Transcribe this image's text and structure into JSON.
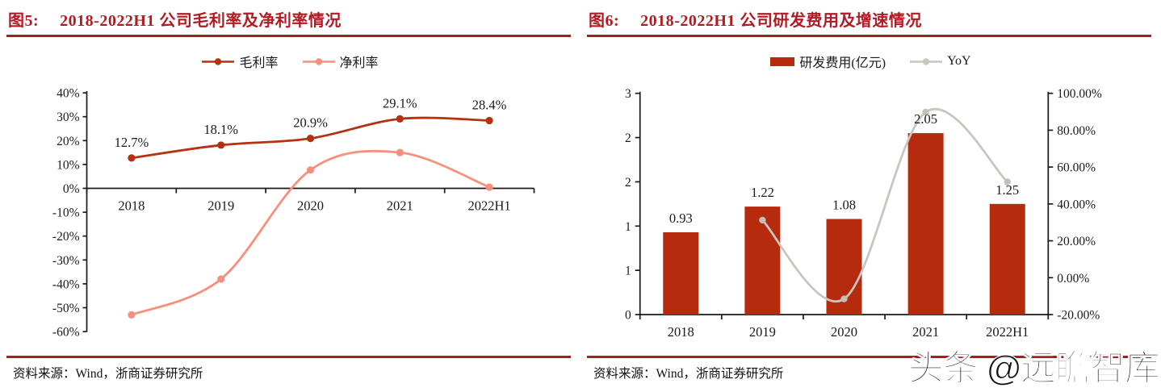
{
  "figures": [
    {
      "title_prefix": "图5:",
      "title": "2018-2022H1 公司毛利率及净利率情况",
      "source": "资料来源：Wind，浙商证券研究所",
      "chart_data": {
        "type": "line",
        "categories": [
          "2018",
          "2019",
          "2020",
          "2021",
          "2022H1"
        ],
        "series": [
          {
            "name": "毛利率",
            "color": "#B5310F",
            "values": [
              12.7,
              18.1,
              20.9,
              29.1,
              28.4
            ],
            "data_labels": [
              "12.7%",
              "18.1%",
              "20.9%",
              "29.1%",
              "28.4%"
            ]
          },
          {
            "name": "净利率",
            "color": "#F7907A",
            "values": [
              -53,
              -38,
              7.7,
              15,
              0.5
            ],
            "data_labels": []
          }
        ],
        "y_axis": {
          "min": -60,
          "max": 40,
          "tick_labels_top_to_bottom": [
            "40%",
            "30%",
            "20%",
            "10%",
            "0%",
            "-10%",
            "-20%",
            "-30%",
            "-40%",
            "-50%",
            "-60%"
          ],
          "tick_values_top_to_bottom": [
            40,
            30,
            20,
            10,
            0,
            -10,
            -20,
            -30,
            -40,
            -50,
            -60
          ]
        },
        "legend_position": "top",
        "grid": false
      }
    },
    {
      "title_prefix": "图6:",
      "title": "2018-2022H1 公司研发费用及增速情况",
      "source": "资料来源：Wind，浙商证券研究所",
      "chart_data": {
        "type": "bar+line",
        "categories": [
          "2018",
          "2019",
          "2020",
          "2021",
          "2022H1"
        ],
        "bar_series": {
          "name": "研发费用(亿元)",
          "color": "#B62A0D",
          "axis": "left",
          "values": [
            0.93,
            1.22,
            1.08,
            2.05,
            1.25
          ],
          "data_labels": [
            "0.93",
            "1.22",
            "1.08",
            "2.05",
            "1.25"
          ]
        },
        "line_series": {
          "name": "YoY",
          "color": "#C9C6C0",
          "axis": "right",
          "values": [
            null,
            31.2,
            -11.5,
            89.8,
            52.0
          ]
        },
        "left_axis": {
          "min": 0,
          "max": 2.5,
          "tick_labels_top_to_bottom": [
            "3",
            "2",
            "2",
            "1",
            "1",
            "0"
          ]
        },
        "right_axis": {
          "min": -20,
          "max": 100,
          "tick_labels_top_to_bottom": [
            "100.00%",
            "80.00%",
            "60.00%",
            "40.00%",
            "20.00%",
            "0.00%",
            "-20.00%"
          ]
        },
        "legend_position": "top",
        "grid": false
      }
    }
  ],
  "watermark": {
    "text": "头条 @远瞻智库"
  },
  "colors": {
    "title_red": "#B01B24",
    "rule_red": "#A51E22",
    "gross_margin_line": "#B5310F",
    "net_margin_line": "#F7907A",
    "bar_red": "#B62A0D",
    "yoy_gray": "#C9C6C0",
    "axis_black": "#1a1a1a",
    "background": "#FFFFFF"
  }
}
